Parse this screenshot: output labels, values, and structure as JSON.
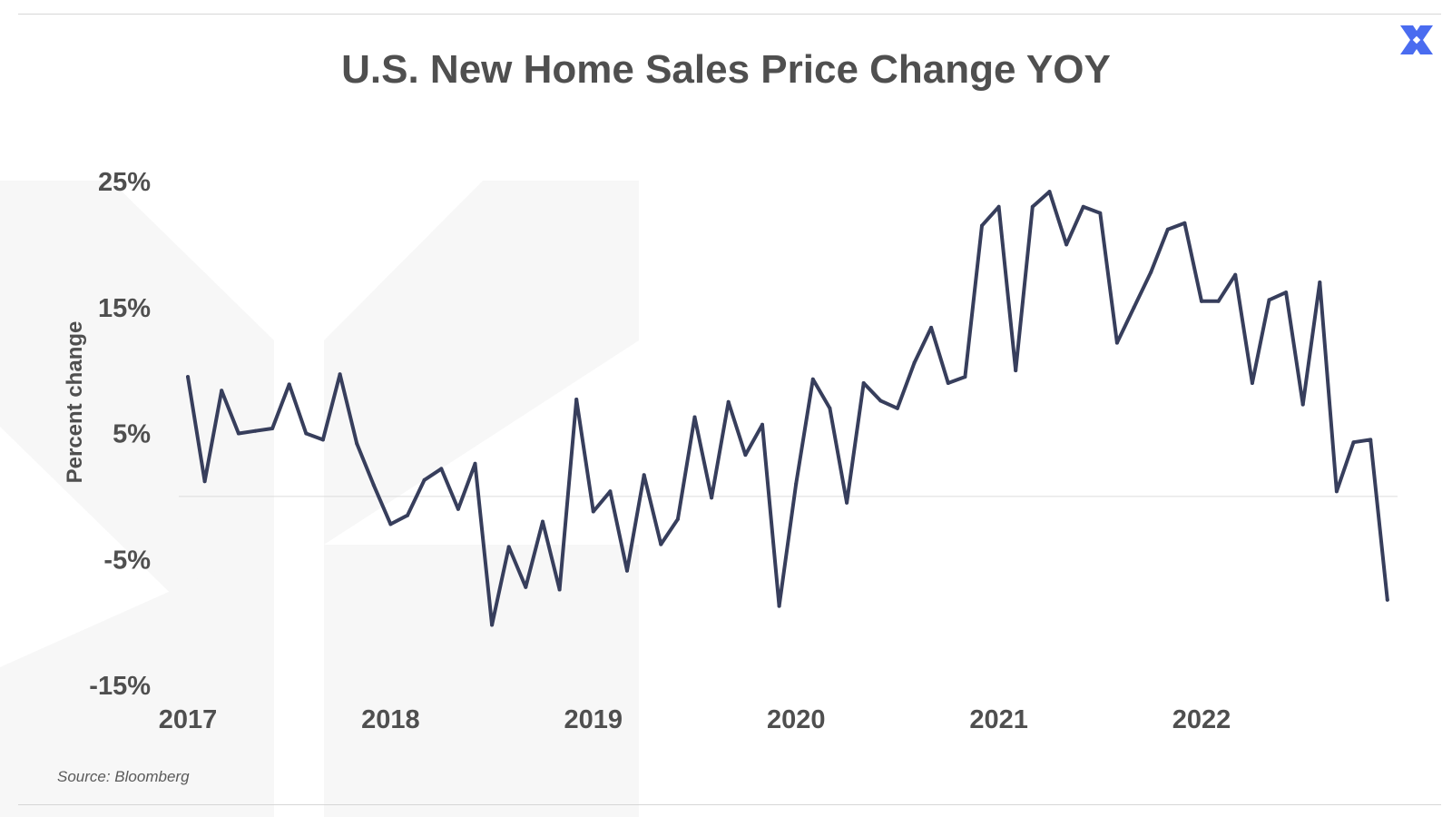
{
  "title": "U.S. New Home Sales Price Change YOY",
  "source": "Source: Bloomberg",
  "colors": {
    "line": "#373e5c",
    "text": "#4f4f4f",
    "watermark": "#f7f7f7",
    "logo": "#4a6cf0",
    "zero_line": "#dcdcdc"
  },
  "icons": {
    "logo": "x-brand-logo-icon",
    "watermark": "x-watermark-icon"
  },
  "chart_data": {
    "type": "line",
    "title": "U.S. New Home Sales Price Change YOY",
    "ylabel": "Percent change",
    "xlabel": "",
    "ylim": [
      -15,
      25
    ],
    "yticks": [
      25,
      15,
      5,
      -5,
      -15
    ],
    "ytick_labels": [
      "25%",
      "15%",
      "5%",
      "-5%",
      "-15%"
    ],
    "xticks": [
      2017,
      2018,
      2019,
      2020,
      2021,
      2022
    ],
    "xtick_labels": [
      "2017",
      "2018",
      "2019",
      "2020",
      "2021",
      "2022"
    ],
    "grid": false,
    "reference_line": 0,
    "series": [
      {
        "x": [
          "2017-01",
          "2017-02",
          "2017-03",
          "2017-04",
          "2017-05",
          "2017-06",
          "2017-07",
          "2017-08",
          "2017-09",
          "2017-10",
          "2017-11",
          "2017-12",
          "2018-01",
          "2018-02",
          "2018-03",
          "2018-04",
          "2018-05",
          "2018-06",
          "2018-07",
          "2018-08",
          "2018-09",
          "2018-10",
          "2018-11",
          "2018-12",
          "2019-01",
          "2019-02",
          "2019-03",
          "2019-04",
          "2019-05",
          "2019-06",
          "2019-07",
          "2019-08",
          "2019-09",
          "2019-10",
          "2019-11",
          "2019-12",
          "2020-01",
          "2020-02",
          "2020-03",
          "2020-04",
          "2020-05",
          "2020-06",
          "2020-07",
          "2020-08",
          "2020-09",
          "2020-10",
          "2020-11",
          "2020-12",
          "2021-01",
          "2021-02",
          "2021-03",
          "2021-04",
          "2021-05",
          "2021-06",
          "2021-07",
          "2021-08",
          "2021-09",
          "2021-10",
          "2021-11",
          "2021-12",
          "2022-01",
          "2022-02",
          "2022-03",
          "2022-04",
          "2022-05",
          "2022-06",
          "2022-07",
          "2022-08",
          "2022-09",
          "2022-10",
          "2022-11",
          "2022-12"
        ],
        "values": [
          9.5,
          1.2,
          8.4,
          5.0,
          5.2,
          5.4,
          8.9,
          5.0,
          4.5,
          9.7,
          4.2,
          0.9,
          -2.2,
          -1.5,
          1.3,
          2.2,
          -1.0,
          2.6,
          -10.2,
          -4.0,
          -7.2,
          -2.0,
          -7.4,
          7.7,
          -1.2,
          0.4,
          -5.9,
          1.7,
          -3.8,
          -1.8,
          6.3,
          -0.1,
          7.5,
          3.3,
          5.7,
          -8.7,
          1.0,
          9.3,
          7.0,
          -0.5,
          9.0,
          7.6,
          7.0,
          10.6,
          13.4,
          9.0,
          9.5,
          21.5,
          23.0,
          10.0,
          23.0,
          24.2,
          20.0,
          23.0,
          22.5,
          12.2,
          15.0,
          17.8,
          21.2,
          21.7,
          15.5,
          15.5,
          17.6,
          9.0,
          15.6,
          16.2,
          7.3,
          17.0,
          0.4,
          4.3,
          4.5,
          -8.2
        ]
      }
    ]
  }
}
